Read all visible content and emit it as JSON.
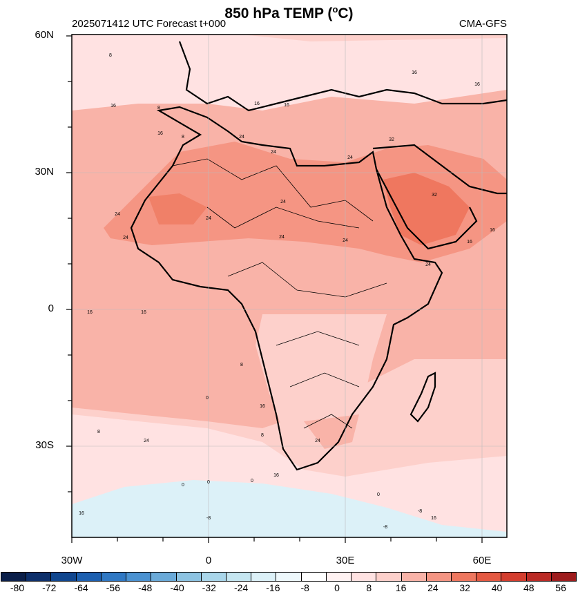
{
  "title": "850 hPa TEMP (",
  "title_unit_sup": "o",
  "title_unit_tail": "C)",
  "run_info": "2025071412 UTC Forecast t+000",
  "model": "CMA-GFS",
  "lat_labels": [
    "60N",
    "30N",
    "0",
    "30S"
  ],
  "lon_labels": [
    "30W",
    "0",
    "30E",
    "60E"
  ],
  "colorbar": {
    "colors": [
      "#0b1f4a",
      "#0d2f6b",
      "#10468f",
      "#1c5fb0",
      "#2f78c4",
      "#4a92d2",
      "#6aaad9",
      "#8cc3e2",
      "#a9d6ea",
      "#c5e6f1",
      "#dcf1f8",
      "#eef8fc",
      "#ffffff",
      "#fff2f2",
      "#ffe2e2",
      "#fdd0cb",
      "#f9b3a8",
      "#f59583",
      "#ef775f",
      "#e55942",
      "#d43d2e",
      "#bb2a25",
      "#9e1c1d"
    ],
    "labels": [
      "-80",
      "-72",
      "-64",
      "-56",
      "-48",
      "-40",
      "-32",
      "-24",
      "-16",
      "-8",
      "0",
      "8",
      "16",
      "24",
      "32",
      "40",
      "48",
      "56"
    ]
  },
  "contour_labels": [
    "8",
    "8",
    "8",
    "16",
    "16",
    "16",
    "16",
    "16",
    "24",
    "24",
    "24",
    "24",
    "24",
    "24",
    "24",
    "24",
    "24",
    "24",
    "32",
    "32",
    "16",
    "16",
    "16",
    "16",
    "16",
    "16",
    "8",
    "8",
    "8",
    "0",
    "0",
    "0",
    "0",
    "0",
    "-8",
    "-8",
    "-8",
    "16",
    "16",
    "24",
    "24",
    "16"
  ]
}
